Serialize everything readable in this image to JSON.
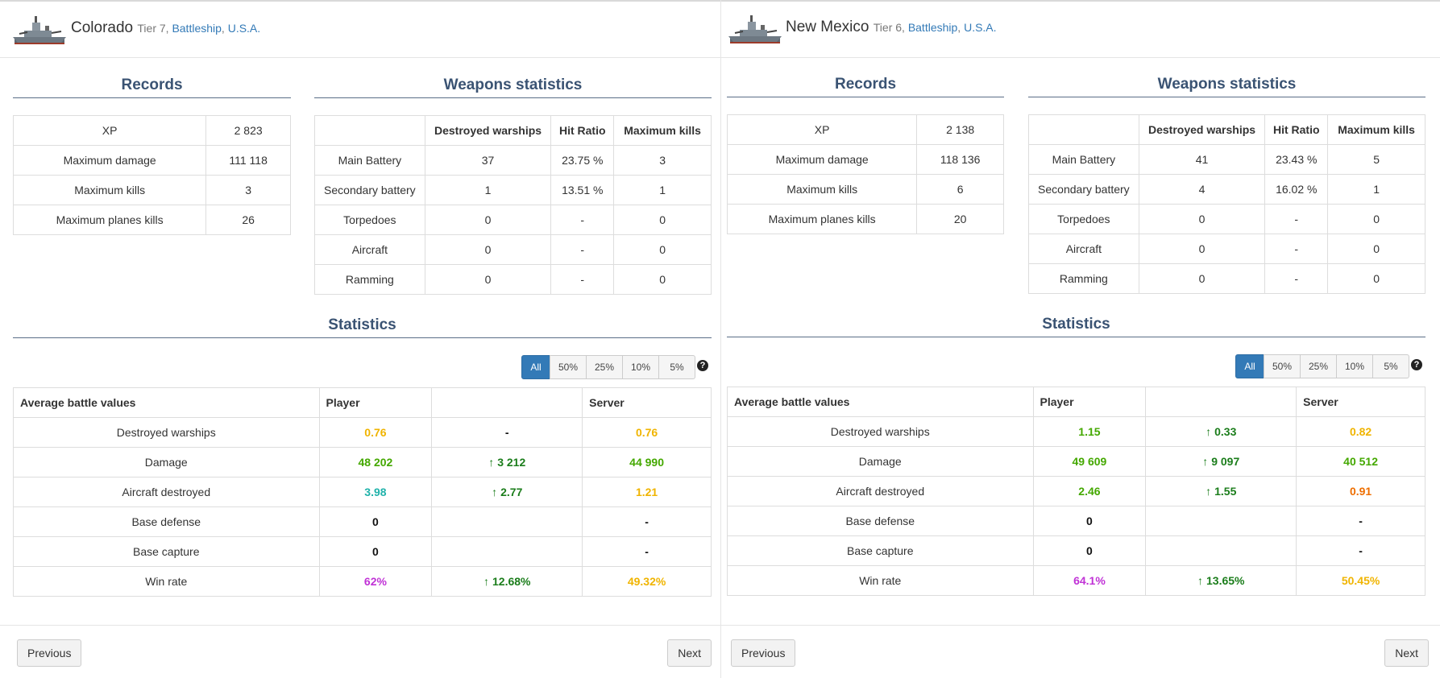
{
  "panels": [
    {
      "ship_name": "Colorado",
      "tier_text": "Tier 7,",
      "ship_class": "Battleship",
      "nation": "U.S.A.",
      "records_title": "Records",
      "weapons_title": "Weapons statistics",
      "statistics_title": "Statistics",
      "records": [
        {
          "label": "XP",
          "value": "2 823"
        },
        {
          "label": "Maximum damage",
          "value": "111 118"
        },
        {
          "label": "Maximum kills",
          "value": "3"
        },
        {
          "label": "Maximum planes kills",
          "value": "26"
        }
      ],
      "weapons_headers": [
        "",
        "Destroyed warships",
        "Hit Ratio",
        "Maximum kills"
      ],
      "weapons": [
        {
          "name": "Main Battery",
          "destroyed": "37",
          "hit_ratio": "23.75 %",
          "max_kills": "3"
        },
        {
          "name": "Secondary battery",
          "destroyed": "1",
          "hit_ratio": "13.51 %",
          "max_kills": "1"
        },
        {
          "name": "Torpedoes",
          "destroyed": "0",
          "hit_ratio": "-",
          "max_kills": "0"
        },
        {
          "name": "Aircraft",
          "destroyed": "0",
          "hit_ratio": "-",
          "max_kills": "0"
        },
        {
          "name": "Ramming",
          "destroyed": "0",
          "hit_ratio": "-",
          "max_kills": "0"
        }
      ],
      "filters": [
        "All",
        "50%",
        "25%",
        "10%",
        "5%"
      ],
      "stats_headers": [
        "Average battle values",
        "Player",
        "",
        "Server"
      ],
      "stats": [
        {
          "label": "Destroyed warships",
          "player": "0.76",
          "player_color": "#f0b400",
          "diff": "-",
          "diff_arrow": false,
          "server": "0.76",
          "server_color": "#f0b400"
        },
        {
          "label": "Damage",
          "player": "48 202",
          "player_color": "#44a800",
          "diff": "3 212",
          "diff_arrow": true,
          "server": "44 990",
          "server_color": "#44a800"
        },
        {
          "label": "Aircraft destroyed",
          "player": "3.98",
          "player_color": "#20b2aa",
          "diff": "2.77",
          "diff_arrow": true,
          "server": "1.21",
          "server_color": "#f0b400"
        },
        {
          "label": "Base defense",
          "player": "0",
          "player_color": "#111111",
          "diff": "",
          "diff_arrow": false,
          "server": "-",
          "server_color": "#111111"
        },
        {
          "label": "Base capture",
          "player": "0",
          "player_color": "#111111",
          "diff": "",
          "diff_arrow": false,
          "server": "-",
          "server_color": "#111111"
        },
        {
          "label": "Win rate",
          "player": "62%",
          "player_color": "#c032d6",
          "diff": "12.68%",
          "diff_arrow": true,
          "server": "49.32%",
          "server_color": "#f0b400"
        }
      ],
      "prev_label": "Previous",
      "next_label": "Next"
    },
    {
      "ship_name": "New Mexico",
      "tier_text": "Tier 6,",
      "ship_class": "Battleship",
      "nation": "U.S.A.",
      "records_title": "Records",
      "weapons_title": "Weapons statistics",
      "statistics_title": "Statistics",
      "records": [
        {
          "label": "XP",
          "value": "2 138"
        },
        {
          "label": "Maximum damage",
          "value": "118 136"
        },
        {
          "label": "Maximum kills",
          "value": "6"
        },
        {
          "label": "Maximum planes kills",
          "value": "20"
        }
      ],
      "weapons_headers": [
        "",
        "Destroyed warships",
        "Hit Ratio",
        "Maximum kills"
      ],
      "weapons": [
        {
          "name": "Main Battery",
          "destroyed": "41",
          "hit_ratio": "23.43 %",
          "max_kills": "5"
        },
        {
          "name": "Secondary battery",
          "destroyed": "4",
          "hit_ratio": "16.02 %",
          "max_kills": "1"
        },
        {
          "name": "Torpedoes",
          "destroyed": "0",
          "hit_ratio": "-",
          "max_kills": "0"
        },
        {
          "name": "Aircraft",
          "destroyed": "0",
          "hit_ratio": "-",
          "max_kills": "0"
        },
        {
          "name": "Ramming",
          "destroyed": "0",
          "hit_ratio": "-",
          "max_kills": "0"
        }
      ],
      "filters": [
        "All",
        "50%",
        "25%",
        "10%",
        "5%"
      ],
      "stats_headers": [
        "Average battle values",
        "Player",
        "",
        "Server"
      ],
      "stats": [
        {
          "label": "Destroyed warships",
          "player": "1.15",
          "player_color": "#44a800",
          "diff": "0.33",
          "diff_arrow": true,
          "server": "0.82",
          "server_color": "#f0b400"
        },
        {
          "label": "Damage",
          "player": "49 609",
          "player_color": "#44a800",
          "diff": "9 097",
          "diff_arrow": true,
          "server": "40 512",
          "server_color": "#44a800"
        },
        {
          "label": "Aircraft destroyed",
          "player": "2.46",
          "player_color": "#44a800",
          "diff": "1.55",
          "diff_arrow": true,
          "server": "0.91",
          "server_color": "#ee6e00"
        },
        {
          "label": "Base defense",
          "player": "0",
          "player_color": "#111111",
          "diff": "",
          "diff_arrow": false,
          "server": "-",
          "server_color": "#111111"
        },
        {
          "label": "Base capture",
          "player": "0",
          "player_color": "#111111",
          "diff": "",
          "diff_arrow": false,
          "server": "-",
          "server_color": "#111111"
        },
        {
          "label": "Win rate",
          "player": "64.1%",
          "player_color": "#c032d6",
          "diff": "13.65%",
          "diff_arrow": true,
          "server": "50.45%",
          "server_color": "#f0b400"
        }
      ],
      "prev_label": "Previous",
      "next_label": "Next"
    }
  ],
  "icons": {
    "ship": "battleship-icon",
    "help": "question-circle-icon",
    "up_arrow": "arrow-up-icon"
  },
  "colors": {
    "link": "#337ab7",
    "active_filter": "#337ab7",
    "diff_green": "#1b7d1b"
  }
}
